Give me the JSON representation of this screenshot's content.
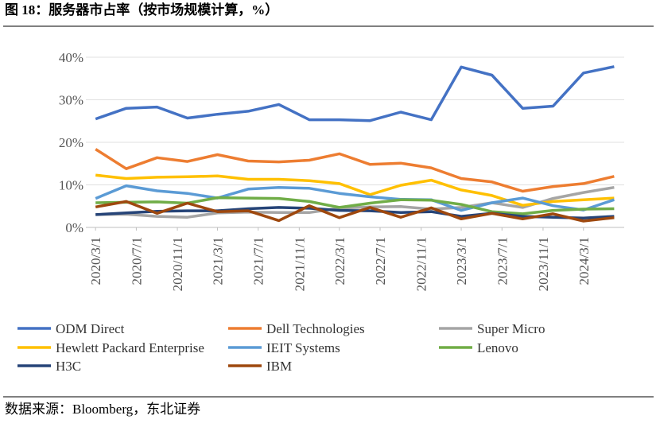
{
  "chart_data": {
    "type": "line",
    "title": "图 18：服务器市占率（按市场规模计算，%）",
    "source": "数据来源：Bloomberg，东北证券",
    "x": [
      "2020/3/1",
      "2020/6/1",
      "2020/9/1",
      "2020/12/1",
      "2021/3/1",
      "2021/6/1",
      "2021/9/1",
      "2021/12/1",
      "2022/3/1",
      "2022/6/1",
      "2022/9/1",
      "2022/12/1",
      "2023/3/1",
      "2023/6/1",
      "2023/9/1",
      "2023/12/1",
      "2024/3/1",
      "2024/6/1"
    ],
    "xlim": [
      "2020/2/1",
      "2024/7/1"
    ],
    "xticks": [
      "2020/3/1",
      "2020/7/1",
      "2020/11/1",
      "2021/3/1",
      "2021/7/1",
      "2021/11/1",
      "2022/3/1",
      "2022/7/1",
      "2022/11/1",
      "2023/3/1",
      "2023/7/1",
      "2023/11/1",
      "2024/3/1"
    ],
    "ylim": [
      0,
      40
    ],
    "yticks": [
      {
        "value": 0,
        "label": "0%"
      },
      {
        "value": 10,
        "label": "10%"
      },
      {
        "value": 20,
        "label": "20%"
      },
      {
        "value": 30,
        "label": "30%"
      },
      {
        "value": 40,
        "label": "40%"
      }
    ],
    "grid": true,
    "legend": "bottom",
    "series": [
      {
        "name": "ODM Direct",
        "color": "#4472c4",
        "values": [
          25.5,
          28,
          28.3,
          25.7,
          26.6,
          27.3,
          28.9,
          25.3,
          25.3,
          25.1,
          27.1,
          25.3,
          37.7,
          35.8,
          28,
          28.5,
          36.3,
          37.8
        ]
      },
      {
        "name": "Dell Technologies",
        "color": "#ed7d31",
        "values": [
          18.4,
          13.8,
          16.4,
          15.5,
          17.1,
          15.6,
          15.4,
          15.8,
          17.3,
          14.8,
          15.1,
          14,
          11.5,
          10.7,
          8.5,
          9.6,
          10.3,
          12
        ]
      },
      {
        "name": "Super Micro",
        "color": "#a5a5a5",
        "values": [
          3,
          3.1,
          2.6,
          2.4,
          3.4,
          3.6,
          3.5,
          3.5,
          4.5,
          4.8,
          4.9,
          4.3,
          4.7,
          5.8,
          4.7,
          6.8,
          8.2,
          9.4
        ]
      },
      {
        "name": "Hewlett Packard Enterprise",
        "color": "#ffc000",
        "values": [
          12.3,
          11.5,
          11.8,
          11.9,
          12.1,
          11.3,
          11.3,
          11,
          10.3,
          7.7,
          9.9,
          11.1,
          8.8,
          7.5,
          5.2,
          6.1,
          6.5,
          6.9
        ]
      },
      {
        "name": "IEIT Systems",
        "color": "#5b9bd5",
        "values": [
          6.8,
          9.8,
          8.6,
          8,
          6.9,
          9,
          9.4,
          9.2,
          8,
          7.2,
          6.6,
          6.5,
          4,
          5.8,
          6.9,
          5.1,
          4.1,
          6.5
        ]
      },
      {
        "name": "Lenovo",
        "color": "#70ad47",
        "values": [
          5.8,
          5.9,
          6,
          5.7,
          7,
          6.9,
          6.8,
          6.1,
          4.7,
          5.7,
          6.5,
          6.4,
          5.4,
          3.7,
          3.2,
          4,
          4.3,
          4.4
        ]
      },
      {
        "name": "H3C",
        "color": "#264478",
        "values": [
          3,
          3.4,
          3.8,
          3.9,
          3.9,
          4.4,
          4.7,
          4.5,
          4,
          3.9,
          3.5,
          3.7,
          2.6,
          3.3,
          2.6,
          2.4,
          2.2,
          2.6
        ]
      },
      {
        "name": "IBM",
        "color": "#9e480e",
        "values": [
          4.8,
          6.1,
          3.3,
          5.7,
          3.7,
          3.9,
          1.6,
          5.1,
          2.3,
          4.7,
          2.4,
          4.6,
          2,
          3.3,
          2,
          3.2,
          1.5,
          2.3
        ]
      }
    ]
  }
}
